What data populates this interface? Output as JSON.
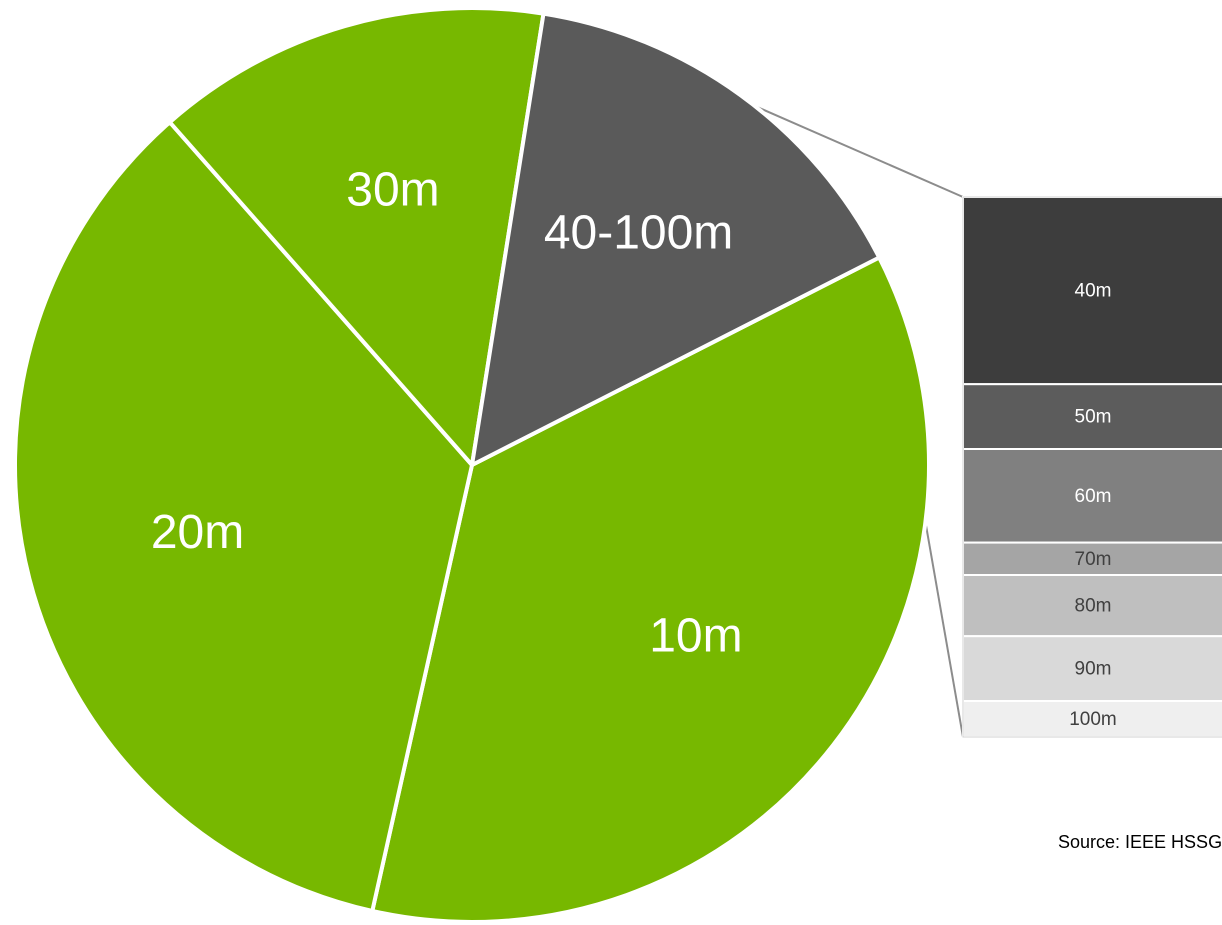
{
  "chart_data": [
    {
      "type": "pie",
      "slices": [
        {
          "label": "10m",
          "value": 36,
          "color": "#77b800"
        },
        {
          "label": "20m",
          "value": 35,
          "color": "#77b800"
        },
        {
          "label": "30m",
          "value": 14,
          "color": "#77b800"
        },
        {
          "label": "40-100m",
          "value": 15,
          "color": "#5a5a5a"
        }
      ],
      "exploded_slice": "40-100m",
      "slice_border_color": "#ffffff"
    },
    {
      "type": "bar",
      "stacked": true,
      "orientation": "vertical",
      "parent": "40-100m",
      "categories": [
        "40m",
        "50m",
        "60m",
        "70m",
        "80m",
        "90m",
        "100m"
      ],
      "values": [
        5.2,
        1.8,
        2.6,
        0.9,
        1.7,
        1.8,
        1.0
      ],
      "colors": [
        "#3d3d3d",
        "#5c5c5c",
        "#808080",
        "#a5a5a5",
        "#bfbfbf",
        "#d9d9d9",
        "#efefef"
      ],
      "label_colors": [
        "#ffffff",
        "#ffffff",
        "#ffffff",
        "#404040",
        "#404040",
        "#404040",
        "#404040"
      ]
    }
  ],
  "source": "Source: IEEE HSSG"
}
